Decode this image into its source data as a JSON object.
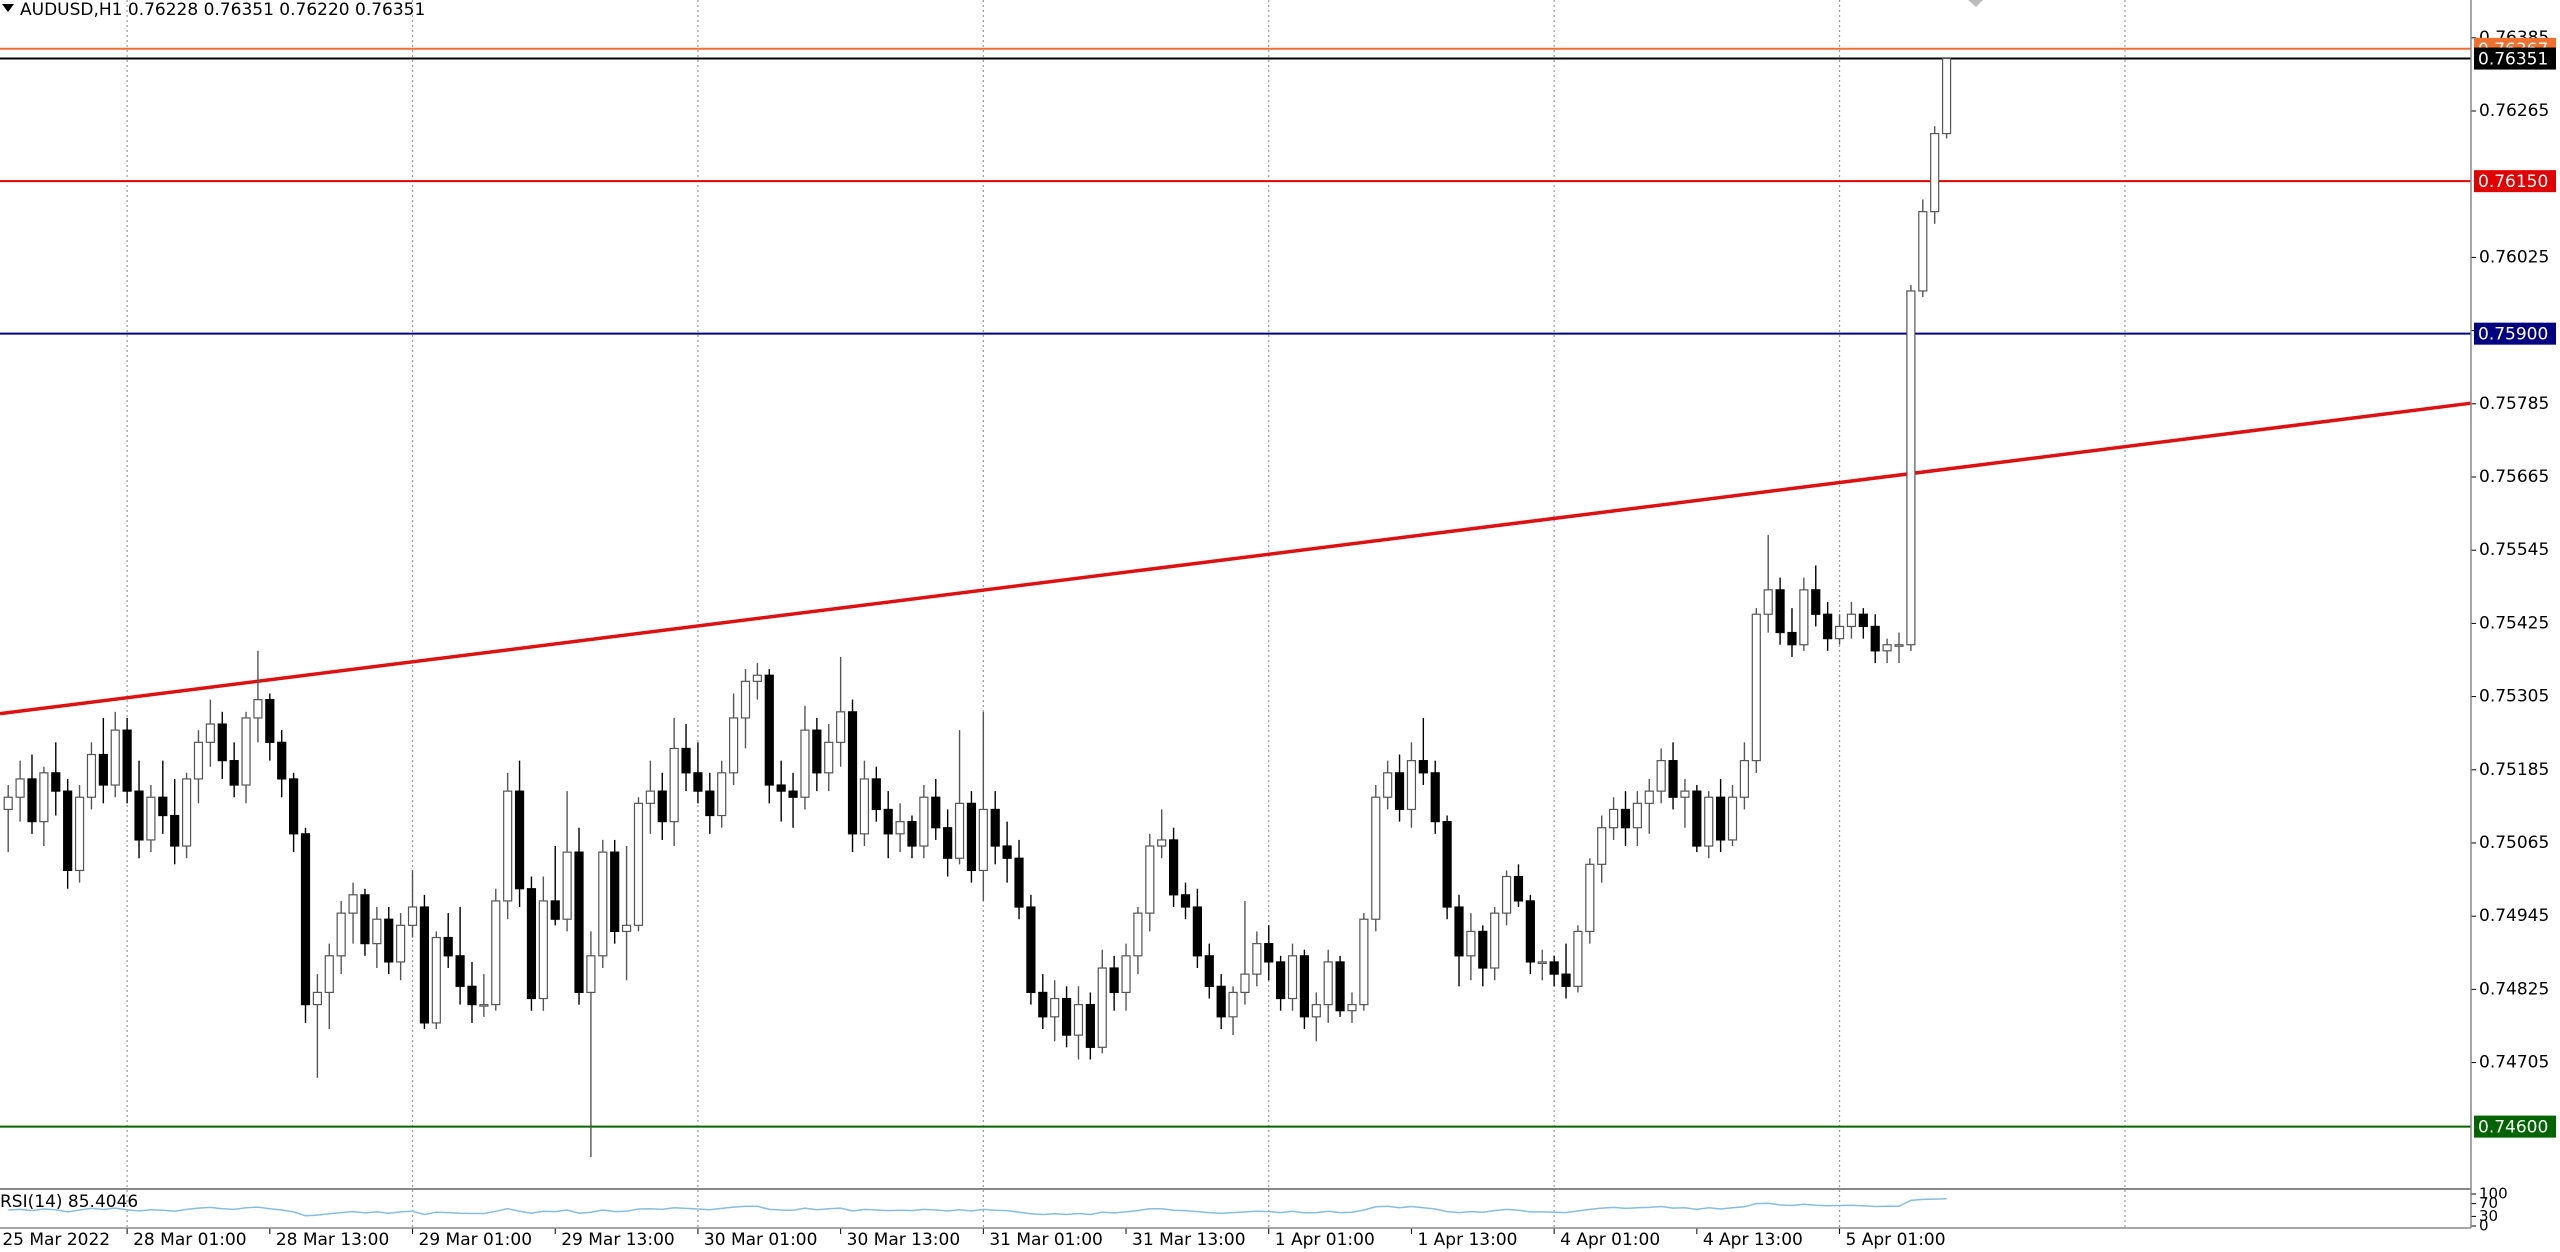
{
  "chart_data": {
    "type": "candlestick",
    "title": "AUDUSD,H1  0.76228 0.76351 0.76220 0.76351",
    "xlim": [
      -0.69,
      207.1
    ],
    "ylim": [
      0.74501,
      0.76447
    ],
    "yticks": [
      0.76385,
      0.76265,
      0.76025,
      0.75905,
      0.75785,
      0.75665,
      0.75545,
      0.75425,
      0.75305,
      0.75185,
      0.75065,
      0.74945,
      0.74825,
      0.74705
    ],
    "xticks": [
      {
        "value": -1,
        "label": "25 Mar 2022"
      },
      {
        "value": 10,
        "label": "28 Mar 01:00"
      },
      {
        "value": 22,
        "label": "28 Mar 13:00"
      },
      {
        "value": 34,
        "label": "29 Mar 01:00"
      },
      {
        "value": 46,
        "label": "29 Mar 13:00"
      },
      {
        "value": 58,
        "label": "30 Mar 01:00"
      },
      {
        "value": 70,
        "label": "30 Mar 13:00"
      },
      {
        "value": 82,
        "label": "31 Mar 01:00"
      },
      {
        "value": 94,
        "label": "31 Mar 13:00"
      },
      {
        "value": 106,
        "label": "1 Apr 01:00"
      },
      {
        "value": 118,
        "label": "1 Apr 13:00"
      },
      {
        "value": 130,
        "label": "4 Apr 01:00"
      },
      {
        "value": 142,
        "label": "4 Apr 13:00"
      },
      {
        "value": 154,
        "label": "5 Apr 01:00"
      }
    ],
    "xgrid": [
      10,
      34,
      58,
      82,
      106,
      130,
      154,
      178
    ],
    "grid": true,
    "bull_color": "#ffffff",
    "bear_color": "#000000",
    "hlines": [
      {
        "value": 0.76367,
        "label": "0.76367",
        "color": "#f07030"
      },
      {
        "value": 0.76351,
        "label": "0.76351",
        "color": "#000000"
      },
      {
        "value": 0.7615,
        "label": "0.76150",
        "color": "#e00000"
      },
      {
        "value": 0.759,
        "label": "0.75900",
        "color": "#000080"
      },
      {
        "value": 0.746,
        "label": "0.74600",
        "color": "#006400"
      }
    ],
    "trendline": {
      "x": [
        -0.69,
        207.1
      ],
      "y": [
        0.75277,
        0.75786
      ],
      "color": "#dd1111"
    },
    "candles": [
      [
        0.7512,
        0.7516,
        0.7505,
        0.7514
      ],
      [
        0.7514,
        0.752,
        0.751,
        0.7517
      ],
      [
        0.7517,
        0.7521,
        0.7508,
        0.751
      ],
      [
        0.751,
        0.7519,
        0.7506,
        0.7518
      ],
      [
        0.7518,
        0.7523,
        0.7511,
        0.7515
      ],
      [
        0.7515,
        0.7517,
        0.7499,
        0.7502
      ],
      [
        0.7502,
        0.7516,
        0.75,
        0.7514
      ],
      [
        0.7514,
        0.7523,
        0.7512,
        0.7521
      ],
      [
        0.7521,
        0.7527,
        0.7513,
        0.7516
      ],
      [
        0.7516,
        0.7528,
        0.7514,
        0.7525
      ],
      [
        0.7525,
        0.7527,
        0.7513,
        0.7515
      ],
      [
        0.7515,
        0.752,
        0.7504,
        0.7507
      ],
      [
        0.7507,
        0.7516,
        0.7505,
        0.7514
      ],
      [
        0.7514,
        0.752,
        0.7508,
        0.7511
      ],
      [
        0.7511,
        0.7517,
        0.7503,
        0.7506
      ],
      [
        0.7506,
        0.7518,
        0.7504,
        0.7517
      ],
      [
        0.7517,
        0.7525,
        0.7513,
        0.7523
      ],
      [
        0.7523,
        0.753,
        0.7519,
        0.7526
      ],
      [
        0.7526,
        0.7528,
        0.7517,
        0.752
      ],
      [
        0.752,
        0.7523,
        0.7514,
        0.7516
      ],
      [
        0.7516,
        0.7528,
        0.7513,
        0.7527
      ],
      [
        0.7527,
        0.7538,
        0.7523,
        0.753
      ],
      [
        0.753,
        0.7531,
        0.752,
        0.7523
      ],
      [
        0.7523,
        0.7525,
        0.7514,
        0.7517
      ],
      [
        0.7517,
        0.7518,
        0.7505,
        0.7508
      ],
      [
        0.7508,
        0.7509,
        0.7477,
        0.748
      ],
      [
        0.748,
        0.7485,
        0.7468,
        0.7482
      ],
      [
        0.7482,
        0.749,
        0.7476,
        0.7488
      ],
      [
        0.7488,
        0.7497,
        0.7485,
        0.7495
      ],
      [
        0.7495,
        0.75,
        0.749,
        0.7498
      ],
      [
        0.7498,
        0.7499,
        0.7488,
        0.749
      ],
      [
        0.749,
        0.7496,
        0.7486,
        0.7494
      ],
      [
        0.7494,
        0.7496,
        0.7485,
        0.7487
      ],
      [
        0.7487,
        0.7495,
        0.7484,
        0.7493
      ],
      [
        0.7493,
        0.7502,
        0.7491,
        0.7496
      ],
      [
        0.7496,
        0.7498,
        0.7476,
        0.7477
      ],
      [
        0.7477,
        0.7492,
        0.7476,
        0.7491
      ],
      [
        0.7491,
        0.7495,
        0.7486,
        0.7488
      ],
      [
        0.7488,
        0.7496,
        0.748,
        0.7483
      ],
      [
        0.7483,
        0.7487,
        0.7477,
        0.748
      ],
      [
        0.748,
        0.7485,
        0.7478,
        0.748
      ],
      [
        0.748,
        0.7499,
        0.7479,
        0.7497
      ],
      [
        0.7497,
        0.7518,
        0.7494,
        0.7515
      ],
      [
        0.7515,
        0.752,
        0.7496,
        0.7499
      ],
      [
        0.7499,
        0.7501,
        0.7479,
        0.7481
      ],
      [
        0.7481,
        0.7501,
        0.7479,
        0.7497
      ],
      [
        0.7497,
        0.7506,
        0.7493,
        0.7494
      ],
      [
        0.7494,
        0.7515,
        0.7492,
        0.7505
      ],
      [
        0.7505,
        0.7509,
        0.748,
        0.7482
      ],
      [
        0.7482,
        0.7492,
        0.7455,
        0.7488
      ],
      [
        0.7488,
        0.7507,
        0.7486,
        0.7505
      ],
      [
        0.7505,
        0.7507,
        0.749,
        0.7492
      ],
      [
        0.7492,
        0.7506,
        0.7484,
        0.7493
      ],
      [
        0.7493,
        0.7514,
        0.7492,
        0.7513
      ],
      [
        0.7513,
        0.752,
        0.7508,
        0.7515
      ],
      [
        0.7515,
        0.7518,
        0.7507,
        0.751
      ],
      [
        0.751,
        0.7527,
        0.7506,
        0.7522
      ],
      [
        0.7522,
        0.7526,
        0.7515,
        0.7518
      ],
      [
        0.7518,
        0.7523,
        0.7513,
        0.7515
      ],
      [
        0.7515,
        0.7518,
        0.7508,
        0.7511
      ],
      [
        0.7511,
        0.752,
        0.7509,
        0.7518
      ],
      [
        0.7518,
        0.7531,
        0.7516,
        0.7527
      ],
      [
        0.7527,
        0.7535,
        0.7522,
        0.7533
      ],
      [
        0.7533,
        0.7536,
        0.753,
        0.7534
      ],
      [
        0.7534,
        0.7535,
        0.7513,
        0.7516
      ],
      [
        0.7516,
        0.752,
        0.751,
        0.7515
      ],
      [
        0.7515,
        0.7518,
        0.7509,
        0.7514
      ],
      [
        0.7514,
        0.7529,
        0.7512,
        0.7525
      ],
      [
        0.7525,
        0.7527,
        0.7515,
        0.7518
      ],
      [
        0.7518,
        0.7526,
        0.7515,
        0.7523
      ],
      [
        0.7523,
        0.7537,
        0.7519,
        0.7528
      ],
      [
        0.7528,
        0.753,
        0.7505,
        0.7508
      ],
      [
        0.7508,
        0.752,
        0.7506,
        0.7517
      ],
      [
        0.7517,
        0.7519,
        0.751,
        0.7512
      ],
      [
        0.7512,
        0.7515,
        0.7504,
        0.7508
      ],
      [
        0.7508,
        0.7513,
        0.7505,
        0.751
      ],
      [
        0.751,
        0.7511,
        0.7504,
        0.7506
      ],
      [
        0.7506,
        0.7516,
        0.7504,
        0.7514
      ],
      [
        0.7514,
        0.7517,
        0.7507,
        0.7509
      ],
      [
        0.7509,
        0.7512,
        0.7501,
        0.7504
      ],
      [
        0.7504,
        0.7525,
        0.7503,
        0.7513
      ],
      [
        0.7513,
        0.7515,
        0.75,
        0.7502
      ],
      [
        0.7502,
        0.7528,
        0.7497,
        0.7512
      ],
      [
        0.7512,
        0.7515,
        0.7503,
        0.7506
      ],
      [
        0.7506,
        0.751,
        0.75,
        0.7504
      ],
      [
        0.7504,
        0.7507,
        0.7494,
        0.7496
      ],
      [
        0.7496,
        0.7498,
        0.748,
        0.7482
      ],
      [
        0.7482,
        0.7485,
        0.7476,
        0.7478
      ],
      [
        0.7478,
        0.7484,
        0.7474,
        0.7481
      ],
      [
        0.7481,
        0.7483,
        0.7473,
        0.7475
      ],
      [
        0.7475,
        0.7483,
        0.7471,
        0.748
      ],
      [
        0.748,
        0.7482,
        0.7471,
        0.7473
      ],
      [
        0.7473,
        0.7489,
        0.7472,
        0.7486
      ],
      [
        0.7486,
        0.7488,
        0.7479,
        0.7482
      ],
      [
        0.7482,
        0.749,
        0.7479,
        0.7488
      ],
      [
        0.7488,
        0.7496,
        0.7485,
        0.7495
      ],
      [
        0.7495,
        0.7508,
        0.7492,
        0.7506
      ],
      [
        0.7506,
        0.7512,
        0.7504,
        0.7507
      ],
      [
        0.7507,
        0.7509,
        0.7496,
        0.7498
      ],
      [
        0.7498,
        0.75,
        0.7494,
        0.7496
      ],
      [
        0.7496,
        0.7499,
        0.7486,
        0.7488
      ],
      [
        0.7488,
        0.749,
        0.7481,
        0.7483
      ],
      [
        0.7483,
        0.7485,
        0.7476,
        0.7478
      ],
      [
        0.7478,
        0.7483,
        0.7475,
        0.7482
      ],
      [
        0.7482,
        0.7497,
        0.748,
        0.7485
      ],
      [
        0.7485,
        0.7492,
        0.7483,
        0.749
      ],
      [
        0.749,
        0.7493,
        0.7484,
        0.7487
      ],
      [
        0.7487,
        0.7488,
        0.7479,
        0.7481
      ],
      [
        0.7481,
        0.749,
        0.7479,
        0.7488
      ],
      [
        0.7488,
        0.7489,
        0.7476,
        0.7478
      ],
      [
        0.7478,
        0.7482,
        0.7474,
        0.748
      ],
      [
        0.748,
        0.7489,
        0.7477,
        0.7487
      ],
      [
        0.7487,
        0.7488,
        0.7478,
        0.7479
      ],
      [
        0.7479,
        0.7482,
        0.7477,
        0.748
      ],
      [
        0.748,
        0.7495,
        0.7479,
        0.7494
      ],
      [
        0.7494,
        0.7516,
        0.7492,
        0.7514
      ],
      [
        0.7514,
        0.752,
        0.7512,
        0.7518
      ],
      [
        0.7518,
        0.7521,
        0.751,
        0.7512
      ],
      [
        0.7512,
        0.7523,
        0.7509,
        0.752
      ],
      [
        0.752,
        0.7527,
        0.7516,
        0.7518
      ],
      [
        0.7518,
        0.752,
        0.7508,
        0.751
      ],
      [
        0.751,
        0.7511,
        0.7494,
        0.7496
      ],
      [
        0.7496,
        0.7498,
        0.7483,
        0.7488
      ],
      [
        0.7488,
        0.7495,
        0.7484,
        0.7492
      ],
      [
        0.7492,
        0.7493,
        0.7483,
        0.7486
      ],
      [
        0.7486,
        0.7496,
        0.7484,
        0.7495
      ],
      [
        0.7495,
        0.7502,
        0.7493,
        0.7501
      ],
      [
        0.7501,
        0.7503,
        0.7496,
        0.7497
      ],
      [
        0.7497,
        0.7498,
        0.7485,
        0.7487
      ],
      [
        0.7487,
        0.7489,
        0.7484,
        0.7487
      ],
      [
        0.7487,
        0.7488,
        0.7483,
        0.7485
      ],
      [
        0.7485,
        0.749,
        0.7481,
        0.7483
      ],
      [
        0.7483,
        0.7493,
        0.7482,
        0.7492
      ],
      [
        0.7492,
        0.7504,
        0.749,
        0.7503
      ],
      [
        0.7503,
        0.7511,
        0.75,
        0.7509
      ],
      [
        0.7509,
        0.7514,
        0.7507,
        0.7512
      ],
      [
        0.7512,
        0.7515,
        0.7506,
        0.7509
      ],
      [
        0.7509,
        0.7515,
        0.7506,
        0.7513
      ],
      [
        0.7513,
        0.7517,
        0.7508,
        0.7515
      ],
      [
        0.7515,
        0.7522,
        0.7513,
        0.752
      ],
      [
        0.752,
        0.7523,
        0.7512,
        0.7514
      ],
      [
        0.7514,
        0.7517,
        0.7509,
        0.7515
      ],
      [
        0.7515,
        0.7516,
        0.7505,
        0.7506
      ],
      [
        0.7506,
        0.7515,
        0.7504,
        0.7514
      ],
      [
        0.7514,
        0.7517,
        0.7505,
        0.7507
      ],
      [
        0.7507,
        0.7516,
        0.7506,
        0.7514
      ],
      [
        0.7514,
        0.7523,
        0.7512,
        0.752
      ],
      [
        0.752,
        0.7545,
        0.7518,
        0.7544
      ],
      [
        0.7544,
        0.7557,
        0.7541,
        0.7548
      ],
      [
        0.7548,
        0.755,
        0.7539,
        0.7541
      ],
      [
        0.7541,
        0.7545,
        0.7537,
        0.7539
      ],
      [
        0.7539,
        0.755,
        0.7538,
        0.7548
      ],
      [
        0.7548,
        0.7552,
        0.7542,
        0.7544
      ],
      [
        0.7544,
        0.7546,
        0.7538,
        0.754
      ],
      [
        0.754,
        0.7544,
        0.7539,
        0.7542
      ],
      [
        0.7542,
        0.7546,
        0.754,
        0.7544
      ],
      [
        0.7544,
        0.7545,
        0.754,
        0.7542
      ],
      [
        0.7542,
        0.7544,
        0.7536,
        0.7538
      ],
      [
        0.7538,
        0.754,
        0.7536,
        0.7539
      ],
      [
        0.7539,
        0.7541,
        0.7536,
        0.7539
      ],
      [
        0.7539,
        0.7598,
        0.7538,
        0.7597
      ],
      [
        0.7597,
        0.7612,
        0.7596,
        0.761
      ],
      [
        0.761,
        0.7624,
        0.7608,
        0.76228
      ],
      [
        0.76228,
        0.76351,
        0.7622,
        0.76351
      ]
    ],
    "rsi": {
      "label": "RSI(14) 85.4046",
      "color": "#87bde0",
      "ylim": [
        0,
        100
      ],
      "yticks": [
        100,
        70,
        30,
        0
      ],
      "values": [
        50,
        52,
        48,
        53,
        51,
        44,
        50,
        55,
        52,
        56,
        51,
        47,
        51,
        49,
        46,
        52,
        56,
        58,
        54,
        52,
        57,
        59,
        54,
        50,
        44,
        32,
        34,
        38,
        42,
        45,
        41,
        44,
        40,
        44,
        46,
        36,
        43,
        42,
        40,
        39,
        39,
        46,
        54,
        46,
        40,
        46,
        45,
        50,
        40,
        43,
        50,
        45,
        46,
        53,
        54,
        52,
        57,
        55,
        53,
        51,
        55,
        59,
        62,
        62,
        52,
        50,
        49,
        56,
        51,
        54,
        56,
        47,
        52,
        50,
        48,
        49,
        48,
        52,
        50,
        47,
        51,
        47,
        52,
        49,
        48,
        43,
        38,
        36,
        38,
        36,
        39,
        36,
        43,
        41,
        44,
        48,
        54,
        54,
        49,
        48,
        45,
        42,
        40,
        42,
        44,
        46,
        45,
        42,
        46,
        41,
        42,
        46,
        42,
        43,
        50,
        60,
        62,
        57,
        61,
        57,
        53,
        45,
        42,
        45,
        43,
        48,
        52,
        49,
        44,
        44,
        43,
        42,
        47,
        52,
        56,
        58,
        55,
        57,
        58,
        61,
        56,
        57,
        52,
        57,
        53,
        57,
        60,
        70,
        71,
        66,
        64,
        68,
        65,
        63,
        64,
        65,
        63,
        61,
        62,
        62,
        80,
        83,
        84,
        85.4046
      ]
    }
  }
}
